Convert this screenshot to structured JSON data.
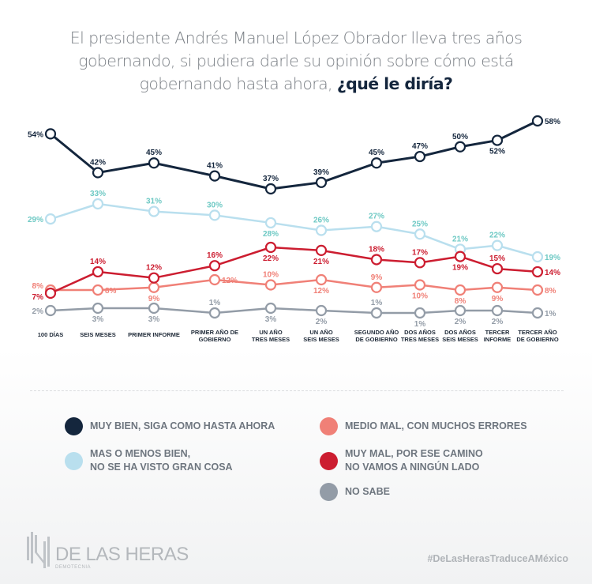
{
  "header": {
    "title_plain": "El presidente Andrés Manuel López Obrador lleva tres años gobernando, si pudiera darle su opinión sobre cómo está gobernando hasta ahora, ",
    "title_bold": "¿qué le diría?"
  },
  "chart_data": {
    "type": "line",
    "title": "El presidente Andrés Manuel López Obrador lleva tres años gobernando, si pudiera darle su opinión sobre cómo está gobernando hasta ahora, ¿qué le diría?",
    "xlabel": "",
    "ylabel": "",
    "unit": "%",
    "grid": false,
    "legend_position": "bottom",
    "categories": [
      "100 DÍAS",
      "SEIS MESES",
      "PRIMER INFORME",
      "PRIMER AÑO DE\nGOBIERNO",
      "UN AÑO\nTRES MESES",
      "UN AÑO\nSEIS MESES",
      "SEGUNDO AÑO\nDE GOBIERNO",
      "DOS AÑOS\nTRES MESES",
      "DOS AÑOS\nSEIS MESES",
      "TERCER\nINFORME",
      "TERCER AÑO\nDE GOBIERNO"
    ],
    "series": [
      {
        "name": "MUY BIEN, SIGA COMO HASTA AHORA",
        "color": "#14263d",
        "label_color": "#14263d",
        "values": [
          54,
          42,
          45,
          41,
          37,
          39,
          45,
          47,
          50,
          52,
          58
        ]
      },
      {
        "name": "MAS O MENOS BIEN, NO SE HA VISTO GRAN COSA",
        "color": "#b9dfee",
        "label_color": "#6ec9c4",
        "values": [
          29,
          33,
          31,
          30,
          28,
          26,
          27,
          25,
          21,
          22,
          19
        ]
      },
      {
        "name": "MUY MAL, POR ESE CAMINO NO VAMOS A NINGÚN LADO",
        "color": "#cc1d30",
        "label_color": "#cc1d30",
        "values": [
          7,
          14,
          12,
          16,
          22,
          21,
          18,
          17,
          19,
          15,
          14
        ]
      },
      {
        "name": "MEDIO MAL, CON MUCHOS ERRORES",
        "color": "#f08077",
        "label_color": "#f08077",
        "values": [
          8,
          8,
          9,
          12,
          10,
          12,
          9,
          10,
          8,
          9,
          8
        ]
      },
      {
        "name": "NO SABE",
        "color": "#939ca7",
        "label_color": "#939ca7",
        "values": [
          2,
          3,
          3,
          1,
          3,
          2,
          1,
          1,
          2,
          2,
          1
        ]
      }
    ]
  },
  "legend": {
    "items": [
      {
        "label": "MUY BIEN, SIGA COMO HASTA AHORA",
        "color": "#14263d"
      },
      {
        "label": "MAS O MENOS BIEN,\nNO SE HA VISTO GRAN COSA",
        "color": "#b9dfee"
      },
      {
        "label": "MEDIO MAL, CON MUCHOS ERRORES",
        "color": "#f08077"
      },
      {
        "label": "MUY MAL, POR ESE CAMINO\nNO VAMOS A NINGÚN LADO",
        "color": "#cc1d30"
      },
      {
        "label": "NO SABE",
        "color": "#939ca7"
      }
    ]
  },
  "footer": {
    "brand_name": "DE LAS HERAS",
    "brand_sub": "DEMOTECNIA",
    "hashtag": "#DeLasHerasTraduceAMéxico"
  }
}
